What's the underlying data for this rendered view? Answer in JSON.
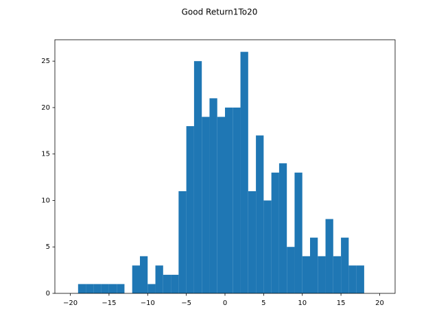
{
  "chart_data": {
    "type": "histogram",
    "title": "Good Return1To20",
    "color": "#1f77b4",
    "bins": [
      -20,
      -19,
      -18,
      -17,
      -16,
      -15,
      -14,
      -13,
      -12,
      -11,
      -10,
      -9,
      -8,
      -7,
      -6,
      -5,
      -4,
      -3,
      -2,
      -1,
      0,
      1,
      2,
      3,
      4,
      5,
      6,
      7,
      8,
      9,
      10,
      11,
      12,
      13,
      14,
      15,
      16,
      17,
      18,
      19,
      20
    ],
    "values": [
      0,
      1,
      1,
      1,
      1,
      1,
      1,
      0,
      3,
      4,
      1,
      3,
      2,
      2,
      11,
      18,
      25,
      19,
      21,
      19,
      20,
      20,
      26,
      11,
      17,
      10,
      13,
      14,
      5,
      13,
      4,
      6,
      4,
      8,
      4,
      6,
      3,
      3,
      0,
      0
    ],
    "xlim": [
      -22,
      22
    ],
    "ylim": [
      0,
      27.3
    ],
    "xticks": [
      {
        "value": -20,
        "label": "−20"
      },
      {
        "value": -15,
        "label": "−15"
      },
      {
        "value": -10,
        "label": "−10"
      },
      {
        "value": -5,
        "label": "−5"
      },
      0,
      5,
      10,
      15,
      20
    ],
    "yticks": [
      0,
      5,
      10,
      15,
      20,
      25
    ]
  }
}
